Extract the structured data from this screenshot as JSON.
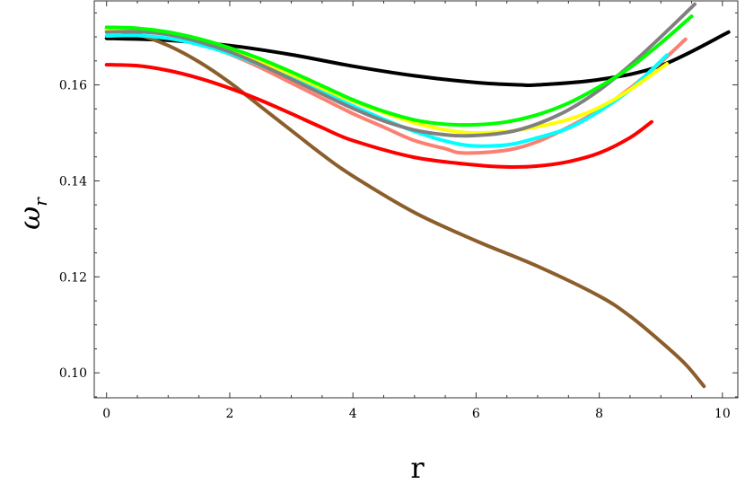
{
  "chart_data": {
    "type": "line",
    "title": "",
    "xlabel": "r",
    "ylabel_main": "ω",
    "ylabel_sub": "r",
    "xlim": [
      -0.2,
      10.25
    ],
    "ylim": [
      0.0948,
      0.1775
    ],
    "xticks": [
      0,
      2,
      4,
      6,
      8,
      10
    ],
    "yticks": [
      0.1,
      0.12,
      0.14,
      0.16
    ],
    "xtick_labels": [
      "0",
      "2",
      "4",
      "6",
      "8",
      "10"
    ],
    "ytick_labels": [
      "0.10",
      "0.12",
      "0.14",
      "0.16"
    ],
    "grid": false,
    "legend": "none",
    "series": [
      {
        "color": "#000000",
        "x": [
          0,
          1,
          2,
          3,
          4,
          5,
          6,
          6.7,
          7,
          8,
          9,
          10.1
        ],
        "y": [
          0.1697,
          0.1693,
          0.1682,
          0.1663,
          0.1639,
          0.1619,
          0.1605,
          0.16,
          0.16,
          0.1611,
          0.164,
          0.171
        ]
      },
      {
        "color": "#8B5E2B",
        "x": [
          0,
          0.5,
          1,
          1.5,
          2,
          2.5,
          3,
          3.5,
          4,
          5,
          6,
          7,
          8,
          8.5,
          9,
          9.4,
          9.7
        ],
        "y": [
          0.1715,
          0.1705,
          0.1682,
          0.1648,
          0.1605,
          0.1555,
          0.1505,
          0.1455,
          0.141,
          0.1334,
          0.1275,
          0.1222,
          0.116,
          0.1118,
          0.1065,
          0.1018,
          0.0972
        ]
      },
      {
        "color": "#FF0000",
        "x": [
          0,
          0.5,
          1,
          1.5,
          2,
          2.5,
          3,
          3.5,
          4,
          5,
          6,
          6.5,
          7,
          7.5,
          8,
          8.5,
          8.85
        ],
        "y": [
          0.1642,
          0.164,
          0.163,
          0.1614,
          0.1593,
          0.1568,
          0.154,
          0.1511,
          0.1484,
          0.1449,
          0.1433,
          0.1429,
          0.1431,
          0.144,
          0.1458,
          0.149,
          0.1523
        ]
      },
      {
        "color": "#FA8072",
        "x": [
          0,
          0.5,
          1,
          1.5,
          2,
          2.5,
          3,
          3.5,
          4,
          4.5,
          5,
          5.5,
          5.8,
          6.5,
          7,
          7.5,
          8,
          8.5,
          9,
          9.4
        ],
        "y": [
          0.1715,
          0.1714,
          0.1705,
          0.1688,
          0.1664,
          0.1636,
          0.1604,
          0.1572,
          0.154,
          0.1512,
          0.1484,
          0.1467,
          0.1458,
          0.1464,
          0.1482,
          0.1512,
          0.1548,
          0.1593,
          0.1647,
          0.1695
        ]
      },
      {
        "color": "#00FFFF",
        "x": [
          0,
          0.5,
          1,
          1.5,
          2,
          2.5,
          3,
          3.5,
          4,
          5,
          5.8,
          6.5,
          7,
          7.5,
          8,
          8.5,
          9.1
        ],
        "y": [
          0.1702,
          0.1703,
          0.1697,
          0.1684,
          0.1665,
          0.1641,
          0.1614,
          0.1586,
          0.1556,
          0.1503,
          0.1475,
          0.1475,
          0.149,
          0.151,
          0.1545,
          0.159,
          0.1662
        ]
      },
      {
        "color": "#FFFF00",
        "x": [
          0,
          0.5,
          1,
          1.5,
          2,
          2.5,
          3,
          3.5,
          4,
          5,
          5.8,
          6.5,
          7,
          7.5,
          8,
          8.5,
          9.1
        ],
        "y": [
          0.1714,
          0.1714,
          0.1707,
          0.1693,
          0.1673,
          0.1649,
          0.1622,
          0.1593,
          0.1566,
          0.1521,
          0.1501,
          0.1503,
          0.1513,
          0.1528,
          0.1553,
          0.159,
          0.1644
        ]
      },
      {
        "color": "#808080",
        "x": [
          0,
          0.5,
          1,
          1.5,
          2,
          2.5,
          3,
          3.5,
          4,
          4.5,
          5,
          5.5,
          5.9,
          6.5,
          7,
          7.5,
          8,
          8.5,
          9,
          9.55
        ],
        "y": [
          0.171,
          0.1711,
          0.1705,
          0.169,
          0.1669,
          0.1642,
          0.1612,
          0.1581,
          0.1551,
          0.1525,
          0.1506,
          0.1496,
          0.1494,
          0.1501,
          0.1519,
          0.1548,
          0.1589,
          0.1641,
          0.17,
          0.1768
        ]
      },
      {
        "color": "#00FF00",
        "x": [
          0,
          0.5,
          1,
          1.5,
          2,
          2.5,
          3,
          3.5,
          4,
          4.5,
          5,
          5.5,
          6,
          6.5,
          7,
          7.5,
          8,
          8.5,
          9,
          9.5
        ],
        "y": [
          0.172,
          0.1718,
          0.171,
          0.1696,
          0.1677,
          0.1654,
          0.1627,
          0.1598,
          0.1569,
          0.1545,
          0.1527,
          0.1518,
          0.1517,
          0.1523,
          0.1538,
          0.1562,
          0.1596,
          0.1636,
          0.1687,
          0.1743
        ]
      }
    ]
  }
}
